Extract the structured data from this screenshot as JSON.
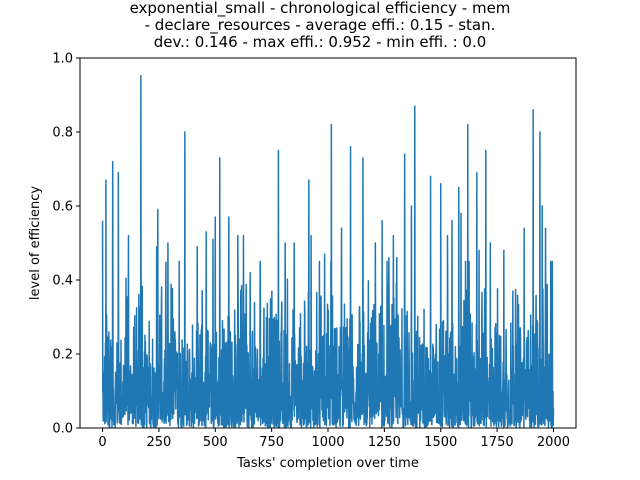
{
  "chart_data": {
    "type": "line",
    "title_lines": [
      "exponential_small - chronological efficiency - mem",
      "- declare_resources - average effi.: 0.15 - stan.",
      "dev.: 0.146 - max effi.: 0.952 - min effi. : 0.0"
    ],
    "xlabel": "Tasks' completion over time",
    "ylabel": "level of efficiency",
    "xlim": [
      -100,
      2100
    ],
    "ylim": [
      0,
      1.0
    ],
    "x_ticks": [
      0,
      250,
      500,
      750,
      1000,
      1250,
      1500,
      1750,
      2000
    ],
    "y_ticks": [
      0.0,
      0.2,
      0.4,
      0.6,
      0.8,
      1.0
    ],
    "y_tick_labels": [
      "0.0",
      "0.2",
      "0.4",
      "0.6",
      "0.8",
      "1.0"
    ],
    "series_color": "#1f77b4",
    "series": [
      {
        "x_start": 0,
        "x_end": 2000,
        "summary": {
          "mean": 0.15,
          "std": 0.146,
          "max": 0.952,
          "min": 0.0
        },
        "peaks": [
          {
            "x": 0,
            "y": 0.56
          },
          {
            "x": 15,
            "y": 0.67
          },
          {
            "x": 45,
            "y": 0.72
          },
          {
            "x": 70,
            "y": 0.69
          },
          {
            "x": 115,
            "y": 0.52
          },
          {
            "x": 170,
            "y": 0.952
          },
          {
            "x": 240,
            "y": 0.49
          },
          {
            "x": 245,
            "y": 0.59
          },
          {
            "x": 290,
            "y": 0.5
          },
          {
            "x": 340,
            "y": 0.45
          },
          {
            "x": 365,
            "y": 0.8
          },
          {
            "x": 420,
            "y": 0.49
          },
          {
            "x": 460,
            "y": 0.53
          },
          {
            "x": 490,
            "y": 0.51
          },
          {
            "x": 500,
            "y": 0.57
          },
          {
            "x": 520,
            "y": 0.73
          },
          {
            "x": 560,
            "y": 0.57
          },
          {
            "x": 600,
            "y": 0.52
          },
          {
            "x": 625,
            "y": 0.52
          },
          {
            "x": 655,
            "y": 0.42
          },
          {
            "x": 700,
            "y": 0.43
          },
          {
            "x": 780,
            "y": 0.75
          },
          {
            "x": 810,
            "y": 0.5
          },
          {
            "x": 850,
            "y": 0.5
          },
          {
            "x": 915,
            "y": 0.67
          },
          {
            "x": 925,
            "y": 0.52
          },
          {
            "x": 985,
            "y": 0.47
          },
          {
            "x": 1015,
            "y": 0.82
          },
          {
            "x": 1060,
            "y": 0.54
          },
          {
            "x": 1100,
            "y": 0.76
          },
          {
            "x": 1155,
            "y": 0.73
          },
          {
            "x": 1210,
            "y": 0.5
          },
          {
            "x": 1240,
            "y": 0.56
          },
          {
            "x": 1270,
            "y": 0.46
          },
          {
            "x": 1290,
            "y": 0.52
          },
          {
            "x": 1305,
            "y": 0.46
          },
          {
            "x": 1340,
            "y": 0.74
          },
          {
            "x": 1370,
            "y": 0.6
          },
          {
            "x": 1385,
            "y": 0.87
          },
          {
            "x": 1455,
            "y": 0.68
          },
          {
            "x": 1500,
            "y": 0.66
          },
          {
            "x": 1530,
            "y": 0.52
          },
          {
            "x": 1550,
            "y": 0.56
          },
          {
            "x": 1580,
            "y": 0.65
          },
          {
            "x": 1590,
            "y": 0.58
          },
          {
            "x": 1620,
            "y": 0.82
          },
          {
            "x": 1660,
            "y": 0.69
          },
          {
            "x": 1670,
            "y": 0.48
          },
          {
            "x": 1700,
            "y": 0.75
          },
          {
            "x": 1720,
            "y": 0.5
          },
          {
            "x": 1780,
            "y": 0.48
          },
          {
            "x": 1820,
            "y": 0.37
          },
          {
            "x": 1870,
            "y": 0.54
          },
          {
            "x": 1910,
            "y": 0.86
          },
          {
            "x": 1940,
            "y": 0.8
          },
          {
            "x": 1950,
            "y": 0.6
          },
          {
            "x": 1965,
            "y": 0.54
          },
          {
            "x": 1995,
            "y": 0.45
          }
        ]
      }
    ],
    "grid": false,
    "legend": "none"
  }
}
